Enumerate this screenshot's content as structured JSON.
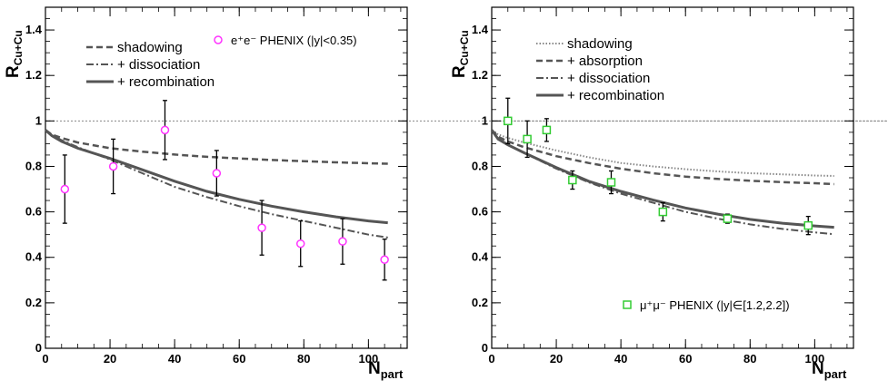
{
  "chart_data": [
    {
      "type": "line",
      "title": "",
      "ylabel_main": "R",
      "ylabel_sub": "Cu+Cu",
      "xlabel_main": "N",
      "xlabel_sub": "part",
      "xlim": [
        0,
        112
      ],
      "ylim": [
        0,
        1.5
      ],
      "xticks": [
        0,
        20,
        40,
        60,
        80,
        100
      ],
      "yticks": [
        0,
        0.2,
        0.4,
        0.6,
        0.8,
        1,
        1.2,
        1.4
      ],
      "xtick_labels": [
        "0",
        "20",
        "40",
        "60",
        "80",
        "100"
      ],
      "ytick_labels": [
        "0",
        "0.2",
        "0.4",
        "0.6",
        "0.8",
        "1",
        "1.2",
        "1.4"
      ],
      "grid": false,
      "reference_line": 1,
      "series": [
        {
          "name": "shadowing",
          "style": "dashed",
          "color": "#555555",
          "x": [
            0,
            2,
            5,
            10,
            20,
            30,
            40,
            50,
            60,
            70,
            80,
            90,
            100,
            106
          ],
          "y": [
            0.96,
            0.94,
            0.925,
            0.905,
            0.88,
            0.865,
            0.852,
            0.842,
            0.835,
            0.828,
            0.823,
            0.818,
            0.814,
            0.812
          ]
        },
        {
          "name": "+ dissociation",
          "style": "dashdot",
          "color": "#555555",
          "x": [
            0,
            2,
            5,
            10,
            20,
            30,
            40,
            50,
            60,
            70,
            80,
            90,
            100,
            106
          ],
          "y": [
            0.96,
            0.94,
            0.915,
            0.885,
            0.83,
            0.77,
            0.71,
            0.665,
            0.625,
            0.59,
            0.56,
            0.53,
            0.5,
            0.487
          ]
        },
        {
          "name": "+ recombination",
          "style": "solid",
          "color": "#555555",
          "x": [
            0,
            2,
            5,
            10,
            20,
            30,
            40,
            50,
            60,
            70,
            80,
            90,
            100,
            106
          ],
          "y": [
            0.96,
            0.935,
            0.91,
            0.88,
            0.835,
            0.785,
            0.735,
            0.69,
            0.655,
            0.625,
            0.6,
            0.578,
            0.56,
            0.552
          ]
        }
      ],
      "points": {
        "name": "e⁺e⁻ PHENIX (|y|<0.35)",
        "marker": "circle",
        "color": "#ff33ff",
        "x": [
          6,
          21,
          37,
          53,
          67,
          79,
          92,
          105
        ],
        "y": [
          0.7,
          0.8,
          0.96,
          0.77,
          0.53,
          0.46,
          0.47,
          0.39
        ],
        "err": [
          0.15,
          0.12,
          0.13,
          0.1,
          0.12,
          0.1,
          0.1,
          0.09
        ]
      }
    },
    {
      "type": "line",
      "title": "",
      "ylabel_main": "R",
      "ylabel_sub": "Cu+Cu",
      "xlabel_main": "N",
      "xlabel_sub": "part",
      "xlim": [
        0,
        112
      ],
      "ylim": [
        0,
        1.5
      ],
      "xticks": [
        0,
        20,
        40,
        60,
        80,
        100
      ],
      "yticks": [
        0,
        0.2,
        0.4,
        0.6,
        0.8,
        1,
        1.2,
        1.4
      ],
      "xtick_labels": [
        "0",
        "20",
        "40",
        "60",
        "80",
        "100"
      ],
      "ytick_labels": [
        "0",
        "0.2",
        "0.4",
        "0.6",
        "0.8",
        "1",
        "1.2",
        "1.4"
      ],
      "grid": false,
      "reference_line": 1,
      "series": [
        {
          "name": "shadowing",
          "style": "dotted",
          "color": "#888888",
          "x": [
            0,
            2,
            5,
            10,
            20,
            30,
            40,
            50,
            60,
            70,
            80,
            90,
            100,
            106
          ],
          "y": [
            0.96,
            0.94,
            0.925,
            0.905,
            0.87,
            0.84,
            0.815,
            0.8,
            0.788,
            0.778,
            0.77,
            0.765,
            0.76,
            0.758
          ]
        },
        {
          "name": "+ absorption",
          "style": "dashed",
          "color": "#555555",
          "x": [
            0,
            2,
            5,
            10,
            20,
            30,
            40,
            50,
            60,
            70,
            80,
            90,
            100,
            106
          ],
          "y": [
            0.96,
            0.93,
            0.91,
            0.885,
            0.845,
            0.815,
            0.79,
            0.77,
            0.755,
            0.745,
            0.737,
            0.731,
            0.726,
            0.722
          ]
        },
        {
          "name": "+ dissociation",
          "style": "dashdot",
          "color": "#555555",
          "x": [
            0,
            2,
            5,
            10,
            20,
            30,
            40,
            50,
            60,
            70,
            80,
            90,
            100,
            106
          ],
          "y": [
            0.96,
            0.92,
            0.895,
            0.86,
            0.79,
            0.73,
            0.68,
            0.64,
            0.6,
            0.57,
            0.545,
            0.525,
            0.51,
            0.502
          ]
        },
        {
          "name": "+ recombination",
          "style": "solid",
          "color": "#555555",
          "x": [
            0,
            2,
            5,
            10,
            20,
            30,
            40,
            50,
            60,
            70,
            80,
            90,
            100,
            106
          ],
          "y": [
            0.96,
            0.92,
            0.895,
            0.86,
            0.795,
            0.735,
            0.69,
            0.652,
            0.617,
            0.59,
            0.567,
            0.55,
            0.538,
            0.532
          ]
        }
      ],
      "points": {
        "name": "μ⁺μ⁻ PHENIX (|y|∈[1.2,2.2])",
        "marker": "square",
        "color": "#33cc33",
        "x": [
          5,
          11,
          17,
          25,
          37,
          53,
          73,
          98
        ],
        "y": [
          1.0,
          0.92,
          0.96,
          0.74,
          0.73,
          0.6,
          0.57,
          0.54
        ],
        "err": [
          0.1,
          0.08,
          0.05,
          0.04,
          0.05,
          0.04,
          0.02,
          0.04
        ]
      }
    }
  ]
}
